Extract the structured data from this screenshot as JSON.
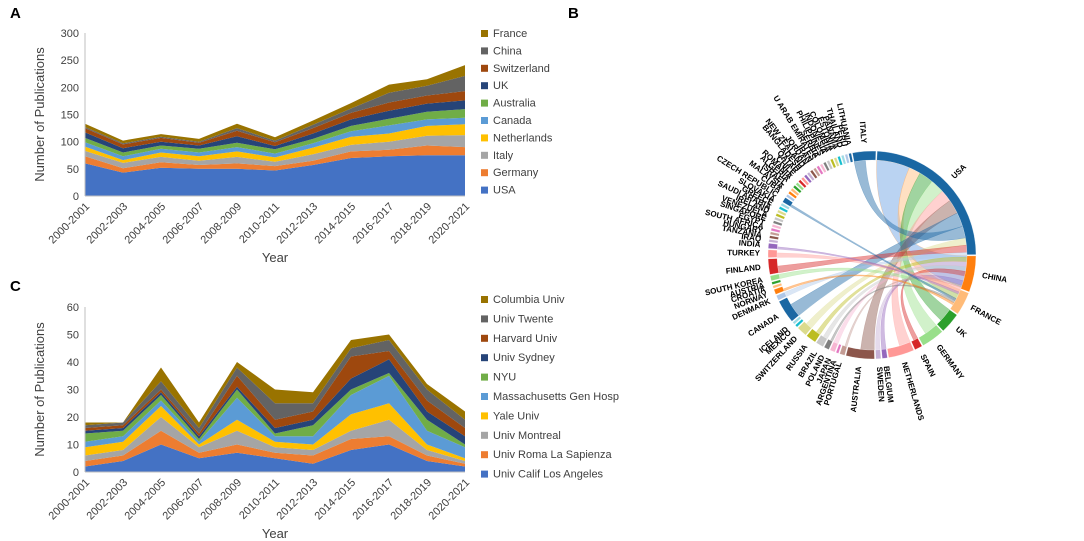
{
  "panels": {
    "a": "A",
    "b": "B",
    "c": "C"
  },
  "chart_data": [
    {
      "id": "A",
      "type": "area",
      "stacked": true,
      "categories": [
        "2000-2001",
        "2002-2003",
        "2004-2005",
        "2006-2007",
        "2008-2009",
        "2010-2011",
        "2012-2013",
        "2014-2015",
        "2016-2017",
        "2018-2019",
        "2020-2021"
      ],
      "xlabel": "Year",
      "ylabel": "Number of Publications",
      "ylim": [
        0,
        300
      ],
      "yticks": [
        "0",
        "50",
        "100",
        "150",
        "200",
        "250",
        "300"
      ],
      "grid": false,
      "legend_position": "right",
      "series": [
        {
          "name": "USA",
          "color": "#4472c4",
          "values": [
            60,
            43,
            52,
            50,
            50,
            47,
            57,
            70,
            73,
            75,
            75
          ]
        },
        {
          "name": "Germany",
          "color": "#ed7d31",
          "values": [
            13,
            8,
            10,
            7,
            10,
            8,
            8,
            12,
            12,
            18,
            15
          ]
        },
        {
          "name": "Italy",
          "color": "#a5a5a5",
          "values": [
            10,
            10,
            10,
            8,
            12,
            8,
            12,
            12,
            15,
            18,
            22
          ]
        },
        {
          "name": "Netherlands",
          "color": "#ffc000",
          "values": [
            8,
            5,
            8,
            8,
            10,
            8,
            12,
            15,
            15,
            18,
            20
          ]
        },
        {
          "name": "Canada",
          "color": "#5b9bd5",
          "values": [
            8,
            7,
            7,
            7,
            8,
            7,
            8,
            10,
            15,
            12,
            12
          ]
        },
        {
          "name": "Australia",
          "color": "#70ad47",
          "values": [
            8,
            7,
            6,
            7,
            8,
            8,
            8,
            10,
            12,
            14,
            16
          ]
        },
        {
          "name": "UK",
          "color": "#264478",
          "values": [
            10,
            8,
            7,
            6,
            12,
            6,
            10,
            12,
            15,
            15,
            16
          ]
        },
        {
          "name": "Switzerland",
          "color": "#9e480e",
          "values": [
            8,
            7,
            7,
            5,
            10,
            7,
            10,
            12,
            15,
            15,
            17
          ]
        },
        {
          "name": "China",
          "color": "#636363",
          "values": [
            2,
            2,
            2,
            2,
            5,
            3,
            6,
            8,
            18,
            18,
            28
          ]
        },
        {
          "name": "France",
          "color": "#997300",
          "values": [
            6,
            5,
            5,
            5,
            8,
            6,
            8,
            10,
            15,
            12,
            20
          ]
        }
      ]
    },
    {
      "id": "C",
      "type": "area",
      "stacked": true,
      "categories": [
        "2000-2001",
        "2002-2003",
        "2004-2005",
        "2006-2007",
        "2008-2009",
        "2010-2011",
        "2012-2013",
        "2014-2015",
        "2016-2017",
        "2018-2019",
        "2020-2021"
      ],
      "xlabel": "Year",
      "ylabel": "Number of Publications",
      "ylim": [
        0,
        60
      ],
      "yticks": [
        "0",
        "10",
        "20",
        "30",
        "40",
        "50",
        "60"
      ],
      "grid": false,
      "legend_position": "right",
      "series": [
        {
          "name": "Univ Calif Los Angeles",
          "color": "#4472c4",
          "values": [
            2,
            4,
            10,
            5,
            7,
            5,
            3,
            8,
            10,
            4,
            2
          ]
        },
        {
          "name": "Univ Roma La Sapienza",
          "color": "#ed7d31",
          "values": [
            2,
            2,
            5,
            2,
            3,
            2,
            3,
            4,
            3,
            2,
            1
          ]
        },
        {
          "name": "Univ Montreal",
          "color": "#a5a5a5",
          "values": [
            2,
            2,
            5,
            2,
            5,
            2,
            2,
            3,
            6,
            2,
            1
          ]
        },
        {
          "name": "Yale Univ",
          "color": "#ffc000",
          "values": [
            3,
            3,
            4,
            1,
            4,
            2,
            2,
            6,
            6,
            2,
            1
          ]
        },
        {
          "name": "Massachusetts Gen Hosp",
          "color": "#5b9bd5",
          "values": [
            2,
            2,
            2,
            1,
            8,
            2,
            3,
            7,
            10,
            5,
            4
          ]
        },
        {
          "name": "NYU",
          "color": "#70ad47",
          "values": [
            3,
            2,
            2,
            1,
            3,
            1,
            4,
            2,
            1,
            4,
            1
          ]
        },
        {
          "name": "Univ Sydney",
          "color": "#264478",
          "values": [
            1,
            1,
            1,
            1,
            1,
            2,
            2,
            4,
            5,
            3,
            3
          ]
        },
        {
          "name": "Harvard Univ",
          "color": "#9e480e",
          "values": [
            1,
            1,
            1,
            1,
            4,
            3,
            3,
            8,
            3,
            4,
            3
          ]
        },
        {
          "name": "Univ Twente",
          "color": "#636363",
          "values": [
            1,
            1,
            3,
            2,
            3,
            6,
            3,
            3,
            4,
            4,
            3
          ]
        },
        {
          "name": "Columbia Univ",
          "color": "#997300",
          "values": [
            1,
            0,
            5,
            2,
            2,
            5,
            4,
            3,
            2,
            2,
            3
          ]
        }
      ]
    },
    {
      "id": "B",
      "type": "chord",
      "nodes": [
        "USA",
        "CHINA",
        "FRANCE",
        "UK",
        "GERMANY",
        "SPAIN",
        "NETHERLANDS",
        "BELGIUM",
        "SWEDEN",
        "AUSTRALIA",
        "PORTUGAL",
        "ARGENTINA",
        "JAPAN",
        "POLAND",
        "BRAZIL",
        "RUSSIA",
        "SWITZERLAND",
        "MEXICO",
        "ICELAND",
        "CANADA",
        "DENMARK",
        "NORWAY",
        "CROATIA",
        "AUSTRIA",
        "SOUTH KOREA",
        "FINLAND",
        "TURKEY",
        "INDIA",
        "IRAQ",
        "TANZANIA",
        "HUNGARY",
        "SOUTH AFRICA",
        "EGYPT",
        "SINGAPORE",
        "VENEZUELA",
        "IRELAND",
        "SAUDI ARABIA",
        "GREECE",
        "SLOVAKIA",
        "CZECH REPUBLIC",
        "CUBA",
        "MALAYSIA",
        "ISRAEL",
        "ALGERIA",
        "ROMANIA",
        "CHILE",
        "QATAR",
        "BANGLADESH",
        "NEW ZEALAND",
        "JORDAN",
        "IRAN",
        "U ARAB EMIRATES",
        "SERBIA",
        "PHILIPPINES",
        "INDONESIA",
        "COLOMBIA",
        "ESTONIA",
        "PANAMA",
        "THAILAND",
        "PERU",
        "LITHUANIA",
        "ITALY"
      ],
      "weights": [
        60,
        14,
        9,
        8,
        9,
        3,
        10,
        2,
        2,
        11,
        2,
        1,
        2,
        2,
        3,
        4,
        4,
        1,
        1,
        9,
        2,
        2,
        1,
        1,
        2,
        6,
        3,
        2,
        1,
        1,
        1,
        1,
        1,
        1,
        1,
        1,
        1,
        1,
        1,
        2,
        1,
        1,
        1,
        1,
        1,
        1,
        1,
        1,
        1,
        1,
        1,
        1,
        1,
        1,
        1,
        1,
        1,
        1,
        1,
        1,
        1,
        9
      ],
      "colors": [
        "#1a67a3",
        "#ff7f0e",
        "#ffbb78",
        "#2ca02c",
        "#98df8a",
        "#d62728",
        "#ff9896",
        "#9467bd",
        "#c5b0d5",
        "#8c564b",
        "#c49c94",
        "#e377c2",
        "#f7b6d2",
        "#7f7f7f",
        "#c7c7c7",
        "#bcbd22",
        "#dbdb8d",
        "#17becf",
        "#9edae5",
        "#1a67a3",
        "#aec7e8",
        "#ff7f0e",
        "#ffbb78",
        "#2ca02c",
        "#98df8a",
        "#d62728",
        "#ff9896",
        "#9467bd",
        "#c5b0d5",
        "#8c564b",
        "#c49c94",
        "#e377c2",
        "#f7b6d2",
        "#7f7f7f",
        "#c7c7c7",
        "#bcbd22",
        "#dbdb8d",
        "#17becf",
        "#9edae5",
        "#1a67a3",
        "#aec7e8",
        "#ff7f0e",
        "#ffbb78",
        "#2ca02c",
        "#98df8a",
        "#d62728",
        "#ff9896",
        "#9467bd",
        "#c5b0d5",
        "#8c564b",
        "#c49c94",
        "#e377c2",
        "#f7b6d2",
        "#7f7f7f",
        "#c7c7c7",
        "#bcbd22",
        "#dbdb8d",
        "#17becf",
        "#9edae5",
        "#aec7e8",
        "#1a67a3",
        "#1a67a3"
      ],
      "links": [
        [
          0,
          1,
          14
        ],
        [
          0,
          2,
          5
        ],
        [
          0,
          3,
          6
        ],
        [
          0,
          4,
          6
        ],
        [
          0,
          6,
          5
        ],
        [
          0,
          9,
          6
        ],
        [
          0,
          19,
          6
        ],
        [
          0,
          61,
          5
        ],
        [
          0,
          16,
          3
        ],
        [
          0,
          25,
          3
        ],
        [
          0,
          20,
          2
        ],
        [
          0,
          15,
          2
        ],
        [
          0,
          12,
          2
        ],
        [
          0,
          14,
          2
        ],
        [
          0,
          5,
          2
        ],
        [
          0,
          8,
          2
        ],
        [
          0,
          7,
          2
        ],
        [
          0,
          10,
          1
        ],
        [
          0,
          26,
          2
        ],
        [
          0,
          27,
          1
        ],
        [
          0,
          24,
          2
        ],
        [
          0,
          39,
          1
        ],
        [
          0,
          13,
          1
        ],
        [
          0,
          21,
          1
        ]
      ]
    }
  ]
}
